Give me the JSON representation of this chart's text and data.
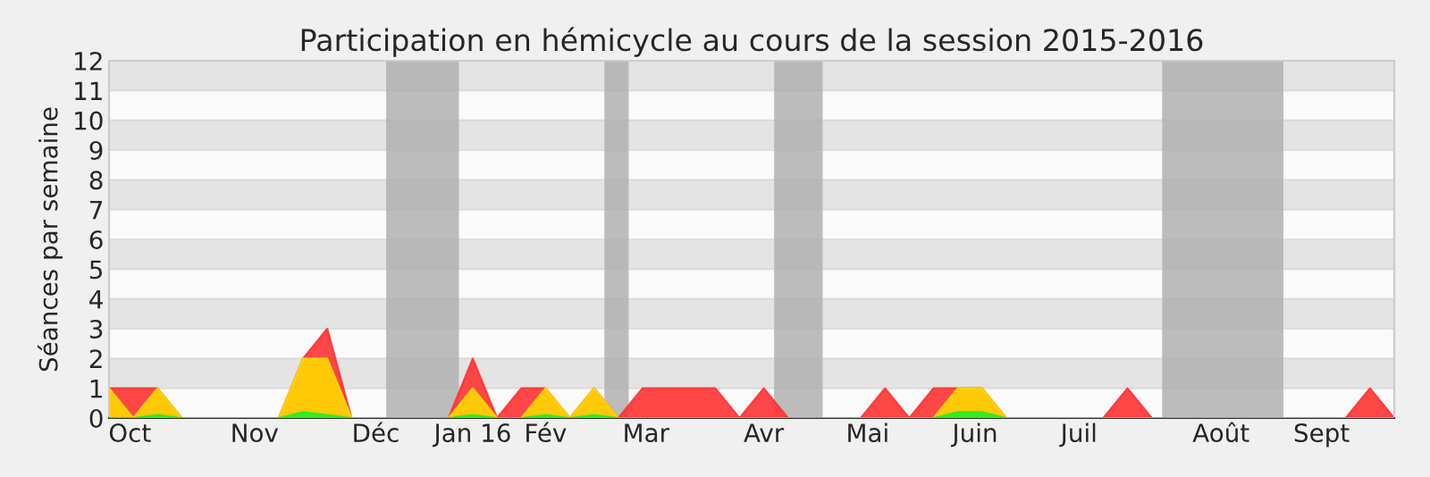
{
  "chart_data": {
    "type": "area",
    "title": "Participation en hémicycle au cours de la session 2015-2016",
    "ylabel": "Séances par semaine",
    "x": [
      "2015-09-28",
      "2015-10-05",
      "2015-10-12",
      "2015-10-19",
      "2015-10-26",
      "2015-11-02",
      "2015-11-09",
      "2015-11-16",
      "2015-11-23",
      "2015-11-30",
      "2015-12-07",
      "2015-12-14",
      "2015-12-21",
      "2015-12-28",
      "2016-01-04",
      "2016-01-11",
      "2016-01-18",
      "2016-01-25",
      "2016-02-01",
      "2016-02-08",
      "2016-02-15",
      "2016-02-22",
      "2016-02-29",
      "2016-03-07",
      "2016-03-14",
      "2016-03-21",
      "2016-03-28",
      "2016-04-04",
      "2016-04-11",
      "2016-04-18",
      "2016-04-25",
      "2016-05-02",
      "2016-05-09",
      "2016-05-16",
      "2016-05-23",
      "2016-05-30",
      "2016-06-06",
      "2016-06-13",
      "2016-06-20",
      "2016-06-27",
      "2016-07-04",
      "2016-07-11",
      "2016-07-18",
      "2016-07-25",
      "2016-08-01",
      "2016-08-08",
      "2016-08-15",
      "2016-08-22",
      "2016-08-29",
      "2016-09-05",
      "2016-09-12",
      "2016-09-19",
      "2016-09-26",
      "2016-10-03"
    ],
    "series": [
      {
        "color": "#ff3333",
        "values": [
          1,
          1,
          1,
          0,
          0,
          0,
          0,
          0,
          2,
          3,
          0,
          0,
          0,
          0,
          0,
          2,
          0,
          1,
          1,
          0,
          1,
          0,
          1,
          1,
          1,
          1,
          0,
          1,
          0,
          0,
          0,
          0,
          1,
          0,
          1,
          1,
          1,
          0,
          0,
          0,
          0,
          0,
          1,
          0,
          0,
          0,
          0,
          0,
          0,
          0,
          0,
          0,
          1,
          0
        ]
      },
      {
        "color": "#ffd700",
        "values": [
          1,
          0,
          1,
          0,
          0,
          0,
          0,
          0,
          2,
          2,
          0,
          0,
          0,
          0,
          0,
          1,
          0,
          0,
          1,
          0,
          1,
          0,
          0,
          0,
          0,
          0,
          0,
          0,
          0,
          0,
          0,
          0,
          0,
          0,
          0,
          1,
          1,
          0,
          0,
          0,
          0,
          0,
          0,
          0,
          0,
          0,
          0,
          0,
          0,
          0,
          0,
          0,
          0,
          0
        ]
      },
      {
        "color": "#22ee22",
        "values": [
          0,
          0,
          0.1,
          0,
          0,
          0,
          0,
          0,
          0.2,
          0.1,
          0,
          0,
          0,
          0,
          0,
          0.1,
          0,
          0,
          0.1,
          0,
          0.1,
          0,
          0,
          0,
          0,
          0,
          0,
          0,
          0,
          0,
          0,
          0,
          0,
          0,
          0,
          0.2,
          0.2,
          0,
          0,
          0,
          0,
          0,
          0,
          0,
          0,
          0,
          0,
          0,
          0,
          0,
          0,
          0,
          0,
          0
        ]
      }
    ],
    "bands": [
      {
        "axis": "x",
        "from": "2015-12-17",
        "to": "2016-01-07",
        "color": "#b0b0b0"
      },
      {
        "axis": "x",
        "from": "2016-02-18",
        "to": "2016-02-25",
        "color": "#b0b0b0"
      },
      {
        "axis": "x",
        "from": "2016-04-07",
        "to": "2016-04-21",
        "color": "#b0b0b0"
      },
      {
        "axis": "x",
        "from": "2016-07-28",
        "to": "2016-09-01",
        "color": "#b0b0b0"
      }
    ],
    "xlim": [
      "2015-09-28",
      "2016-10-03"
    ],
    "xticks": [
      {
        "value": "2015-10-04",
        "label": "Oct"
      },
      {
        "value": "2015-11-09",
        "label": "Nov"
      },
      {
        "value": "2015-12-14",
        "label": "Déc"
      },
      {
        "value": "2016-01-11",
        "label": "Jan 16"
      },
      {
        "value": "2016-02-01",
        "label": "Fév"
      },
      {
        "value": "2016-03-01",
        "label": "Mar"
      },
      {
        "value": "2016-04-04",
        "label": "Avr"
      },
      {
        "value": "2016-05-04",
        "label": "Mai"
      },
      {
        "value": "2016-06-04",
        "label": "Juin"
      },
      {
        "value": "2016-07-04",
        "label": "Juil"
      },
      {
        "value": "2016-08-14",
        "label": "Août"
      },
      {
        "value": "2016-09-12",
        "label": "Sept"
      }
    ],
    "ylim": [
      0,
      12
    ],
    "yticks": [
      0,
      1,
      2,
      3,
      4,
      5,
      6,
      7,
      8,
      9,
      10,
      11,
      12
    ],
    "grid": "y",
    "legend": false
  }
}
